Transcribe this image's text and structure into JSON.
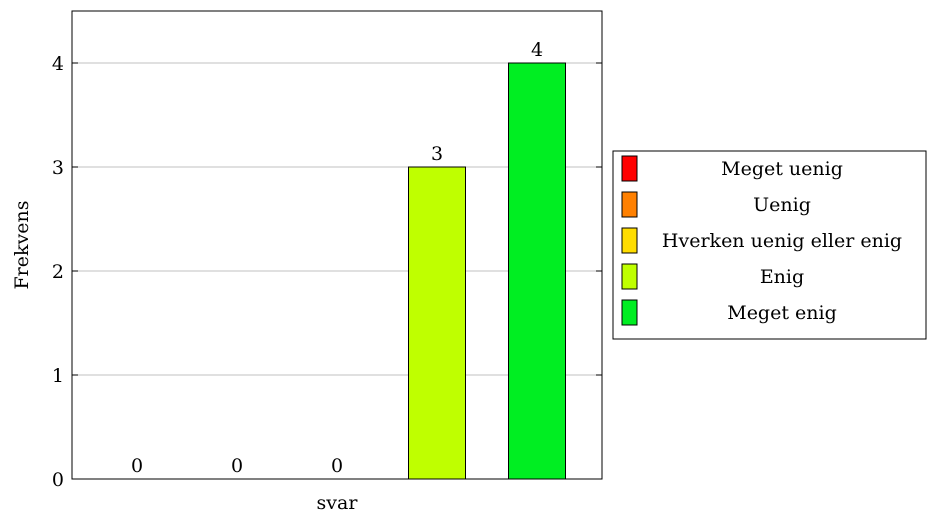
{
  "chart_data": {
    "type": "bar",
    "categories": [
      "svar"
    ],
    "xlabel": "svar",
    "ylabel": "Frekvens",
    "ylim": [
      0,
      4.5
    ],
    "yticks": [
      0,
      1,
      2,
      3,
      4
    ],
    "grid": "horizontal",
    "legend_position": "right",
    "series": [
      {
        "name": "Meget uenig",
        "values": [
          0
        ],
        "color": "#ff0000",
        "label": "0"
      },
      {
        "name": "Uenig",
        "values": [
          0
        ],
        "color": "#ff8000",
        "label": "0"
      },
      {
        "name": "Hverken uenig eller enig",
        "values": [
          0
        ],
        "color": "#ffdd00",
        "label": "0"
      },
      {
        "name": "Enig",
        "values": [
          3
        ],
        "color": "#bfff00",
        "label": "3"
      },
      {
        "name": "Meget enig",
        "values": [
          4
        ],
        "color": "#00ee22",
        "label": "4"
      }
    ]
  }
}
